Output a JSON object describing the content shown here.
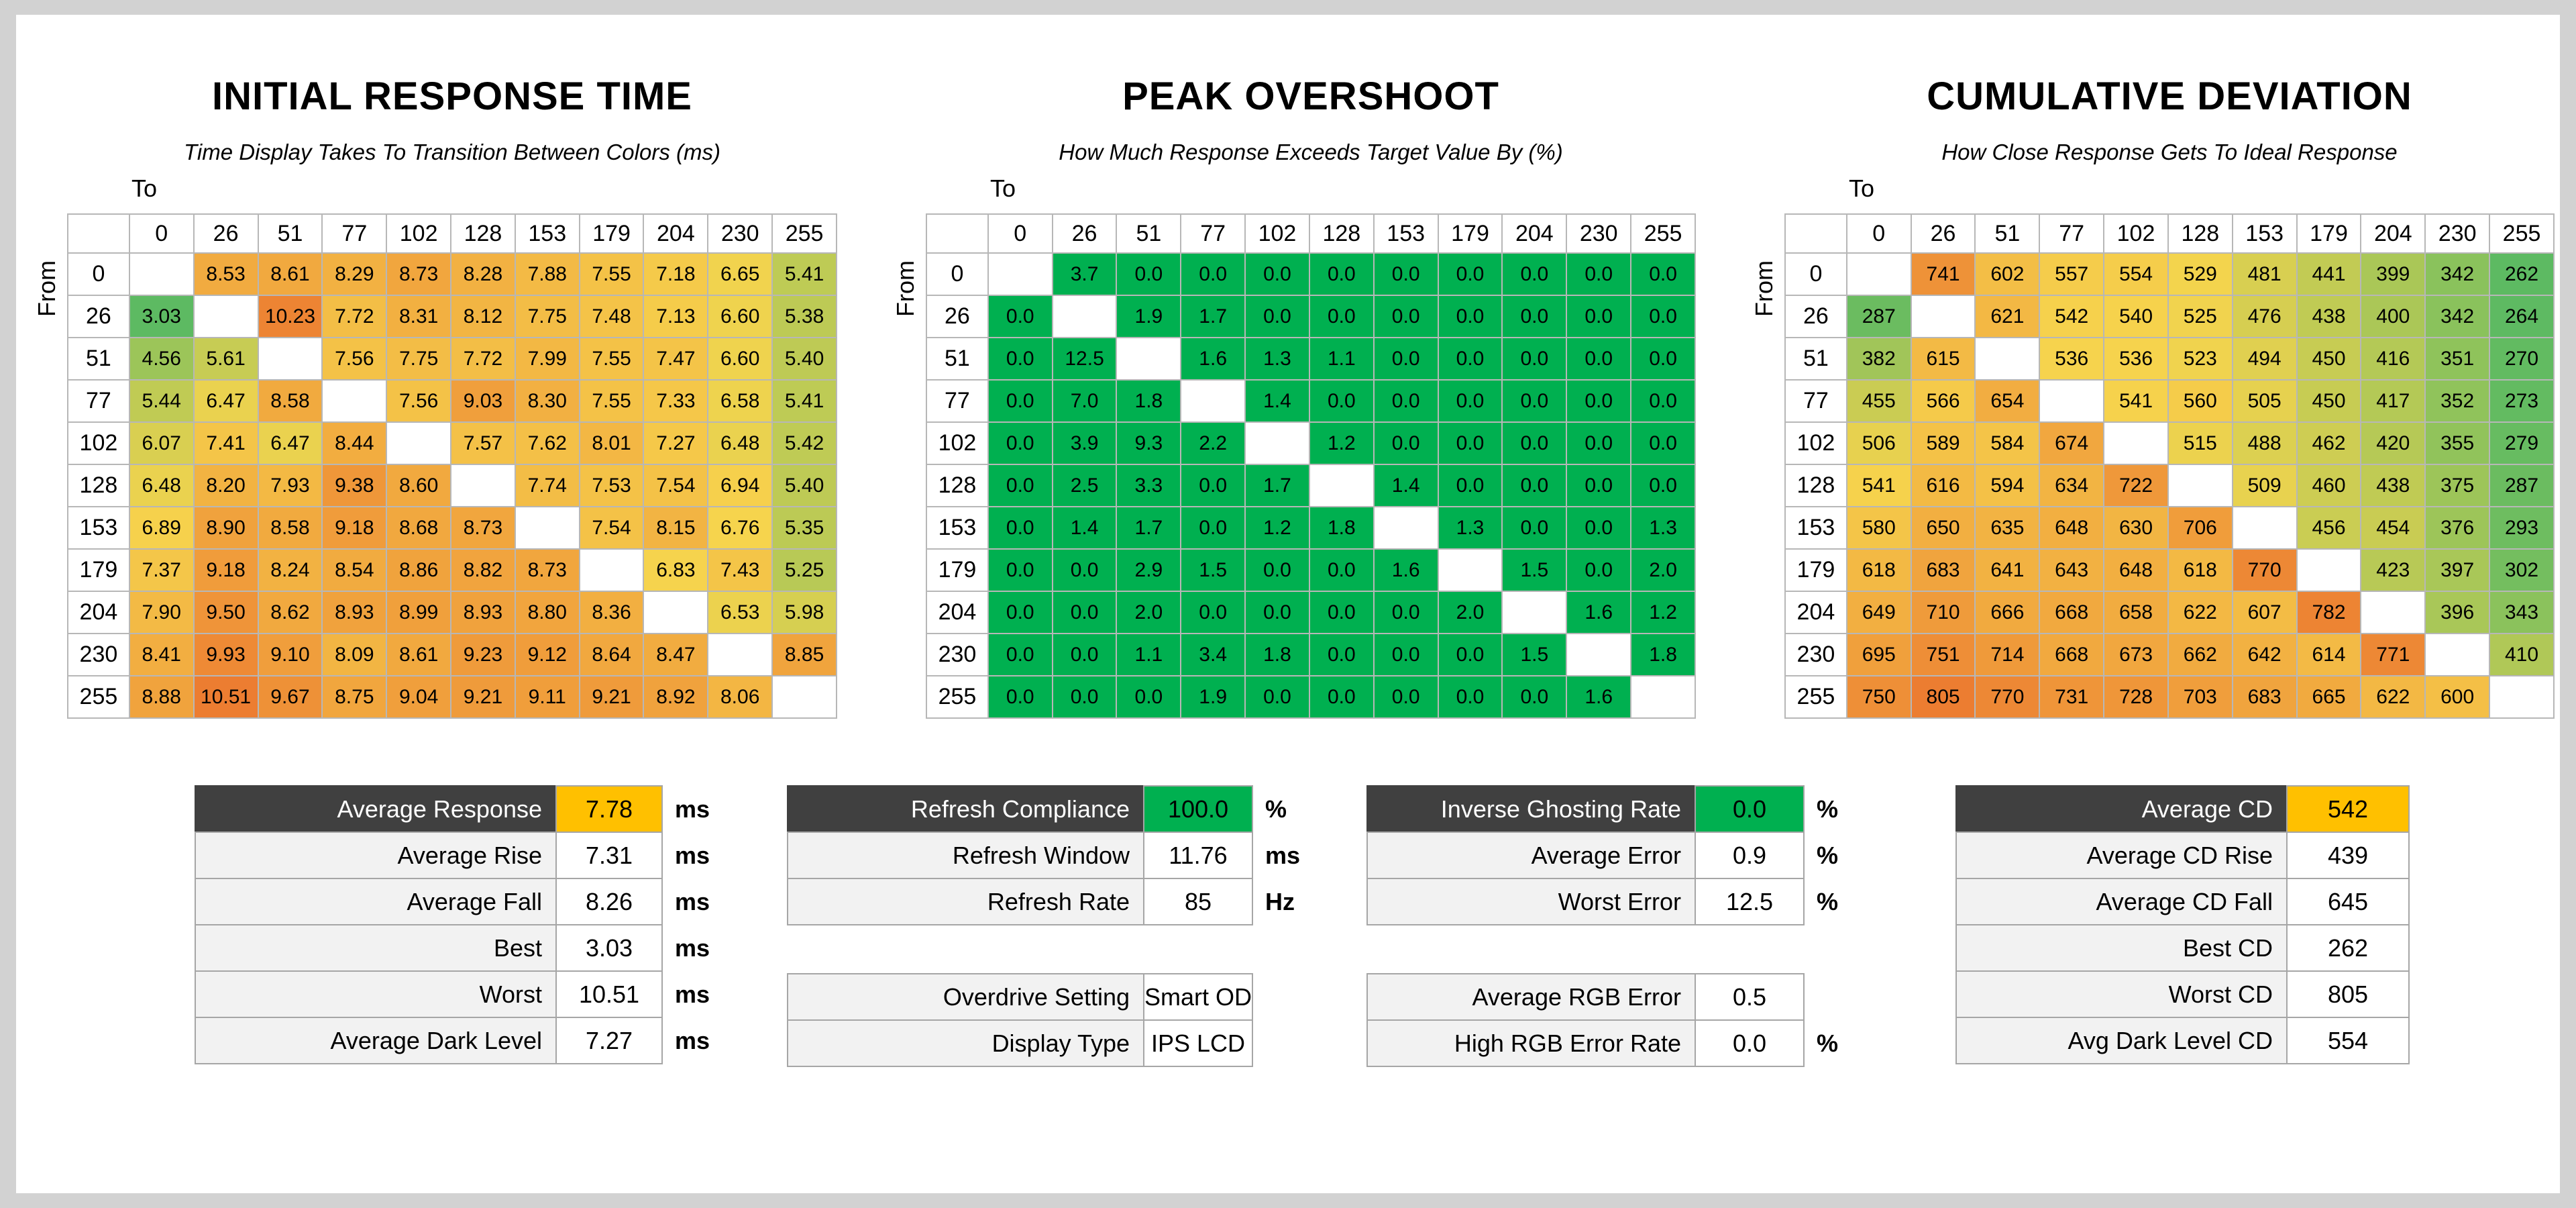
{
  "colors": {
    "page_background": "#d2d2d2",
    "card_background": "#ffffff",
    "matrix_grid_border": "#b7b7b7",
    "summary_border": "#a6a6a6",
    "summary_label_bg": "#f2f2f2",
    "summary_dark_header_bg": "#404040",
    "highlight_yellow": "#ffc000",
    "highlight_green": "#00b050"
  },
  "chart_data": [
    {
      "type": "heatmap",
      "name": "initial-response-time",
      "title": "INITIAL RESPONSE TIME",
      "subtitle": "Time Display Takes To Transition Between Colors (ms)",
      "x_axis_label": "To",
      "y_axis_label": "From",
      "unit": "ms",
      "decimals": 2,
      "categories": [
        0,
        26,
        51,
        77,
        102,
        128,
        153,
        179,
        204,
        230,
        255
      ],
      "scale": {
        "kind": "gradient",
        "min": 3.03,
        "max": 10.51,
        "stops": [
          "#5dba62",
          "#f6d44d",
          "#ec7d31"
        ]
      },
      "rows": [
        [
          null,
          8.53,
          8.61,
          8.29,
          8.73,
          8.28,
          7.88,
          7.55,
          7.18,
          6.65,
          5.41
        ],
        [
          3.03,
          null,
          10.23,
          7.72,
          8.31,
          8.12,
          7.75,
          7.48,
          7.13,
          6.6,
          5.38
        ],
        [
          4.56,
          5.61,
          null,
          7.56,
          7.75,
          7.72,
          7.99,
          7.55,
          7.47,
          6.6,
          5.4
        ],
        [
          5.44,
          6.47,
          8.58,
          null,
          7.56,
          9.03,
          8.3,
          7.55,
          7.33,
          6.58,
          5.41
        ],
        [
          6.07,
          7.41,
          6.47,
          8.44,
          null,
          7.57,
          7.62,
          8.01,
          7.27,
          6.48,
          5.42
        ],
        [
          6.48,
          8.2,
          7.93,
          9.38,
          8.6,
          null,
          7.74,
          7.53,
          7.54,
          6.94,
          5.4
        ],
        [
          6.89,
          8.9,
          8.58,
          9.18,
          8.68,
          8.73,
          null,
          7.54,
          8.15,
          6.76,
          5.35
        ],
        [
          7.37,
          9.18,
          8.24,
          8.54,
          8.86,
          8.82,
          8.73,
          null,
          6.83,
          7.43,
          5.25
        ],
        [
          7.9,
          9.5,
          8.62,
          8.93,
          8.99,
          8.93,
          8.8,
          8.36,
          null,
          6.53,
          5.98
        ],
        [
          8.41,
          9.93,
          9.1,
          8.09,
          8.61,
          9.23,
          9.12,
          8.64,
          8.47,
          null,
          8.85
        ],
        [
          8.88,
          10.51,
          9.67,
          8.75,
          9.04,
          9.21,
          9.11,
          9.21,
          8.92,
          8.06,
          null
        ]
      ]
    },
    {
      "type": "heatmap",
      "name": "peak-overshoot",
      "title": "PEAK OVERSHOOT",
      "subtitle": "How Much Response Exceeds Target Value By (%)",
      "x_axis_label": "To",
      "y_axis_label": "From",
      "unit": "%",
      "decimals": 1,
      "categories": [
        0,
        26,
        51,
        77,
        102,
        128,
        153,
        179,
        204,
        230,
        255
      ],
      "scale": {
        "kind": "flat",
        "color": "#00b050"
      },
      "rows": [
        [
          null,
          3.7,
          0.0,
          0.0,
          0.0,
          0.0,
          0.0,
          0.0,
          0.0,
          0.0,
          0.0
        ],
        [
          0.0,
          null,
          1.9,
          1.7,
          0.0,
          0.0,
          0.0,
          0.0,
          0.0,
          0.0,
          0.0
        ],
        [
          0.0,
          12.5,
          null,
          1.6,
          1.3,
          1.1,
          0.0,
          0.0,
          0.0,
          0.0,
          0.0
        ],
        [
          0.0,
          7.0,
          1.8,
          null,
          1.4,
          0.0,
          0.0,
          0.0,
          0.0,
          0.0,
          0.0
        ],
        [
          0.0,
          3.9,
          9.3,
          2.2,
          null,
          1.2,
          0.0,
          0.0,
          0.0,
          0.0,
          0.0
        ],
        [
          0.0,
          2.5,
          3.3,
          0.0,
          1.7,
          null,
          1.4,
          0.0,
          0.0,
          0.0,
          0.0
        ],
        [
          0.0,
          1.4,
          1.7,
          0.0,
          1.2,
          1.8,
          null,
          1.3,
          0.0,
          0.0,
          1.3
        ],
        [
          0.0,
          0.0,
          2.9,
          1.5,
          0.0,
          0.0,
          1.6,
          null,
          1.5,
          0.0,
          2.0
        ],
        [
          0.0,
          0.0,
          2.0,
          0.0,
          0.0,
          0.0,
          0.0,
          2.0,
          null,
          1.6,
          1.2
        ],
        [
          0.0,
          0.0,
          1.1,
          3.4,
          1.8,
          0.0,
          0.0,
          0.0,
          1.5,
          null,
          1.8
        ],
        [
          0.0,
          0.0,
          0.0,
          1.9,
          0.0,
          0.0,
          0.0,
          0.0,
          0.0,
          1.6,
          null
        ]
      ]
    },
    {
      "type": "heatmap",
      "name": "cumulative-deviation",
      "title": "CUMULATIVE DEVIATION",
      "subtitle": "How Close Response Gets To Ideal Response",
      "x_axis_label": "To",
      "y_axis_label": "From",
      "unit": "",
      "decimals": 0,
      "categories": [
        0,
        26,
        51,
        77,
        102,
        128,
        153,
        179,
        204,
        230,
        255
      ],
      "scale": {
        "kind": "gradient",
        "min": 262,
        "max": 805,
        "stops": [
          "#5dba62",
          "#f6d44d",
          "#ec7d31"
        ]
      },
      "rows": [
        [
          null,
          741,
          602,
          557,
          554,
          529,
          481,
          441,
          399,
          342,
          262
        ],
        [
          287,
          null,
          621,
          542,
          540,
          525,
          476,
          438,
          400,
          342,
          264
        ],
        [
          382,
          615,
          null,
          536,
          536,
          523,
          494,
          450,
          416,
          351,
          270
        ],
        [
          455,
          566,
          654,
          null,
          541,
          560,
          505,
          450,
          417,
          352,
          273
        ],
        [
          506,
          589,
          584,
          674,
          null,
          515,
          488,
          462,
          420,
          355,
          279
        ],
        [
          541,
          616,
          594,
          634,
          722,
          null,
          509,
          460,
          438,
          375,
          287
        ],
        [
          580,
          650,
          635,
          648,
          630,
          706,
          null,
          456,
          454,
          376,
          293
        ],
        [
          618,
          683,
          641,
          643,
          648,
          618,
          770,
          null,
          423,
          397,
          302
        ],
        [
          649,
          710,
          666,
          668,
          658,
          622,
          607,
          782,
          null,
          396,
          343
        ],
        [
          695,
          751,
          714,
          668,
          673,
          662,
          642,
          614,
          771,
          null,
          410
        ],
        [
          750,
          805,
          770,
          731,
          728,
          703,
          683,
          665,
          622,
          600,
          null
        ]
      ]
    },
    {
      "type": "table",
      "name": "response-time-summary",
      "groups": [
        [
          {
            "label": "Average Response",
            "value": "7.78",
            "unit": "ms",
            "dark": true,
            "value_color": "#ffc000"
          },
          {
            "label": "Average Rise",
            "value": "7.31",
            "unit": "ms"
          },
          {
            "label": "Average Fall",
            "value": "8.26",
            "unit": "ms"
          },
          {
            "label": "Best",
            "value": "3.03",
            "unit": "ms"
          },
          {
            "label": "Worst",
            "value": "10.51",
            "unit": "ms"
          },
          {
            "label": "Average Dark Level",
            "value": "7.27",
            "unit": "ms"
          }
        ]
      ]
    },
    {
      "type": "table",
      "name": "refresh-summary",
      "groups": [
        [
          {
            "label": "Refresh Compliance",
            "value": "100.0",
            "unit": "%",
            "dark": true,
            "value_color": "#00b050"
          },
          {
            "label": "Refresh Window",
            "value": "11.76",
            "unit": "ms"
          },
          {
            "label": "Refresh Rate",
            "value": "85",
            "unit": "Hz"
          }
        ],
        [
          {
            "label": "Overdrive Setting",
            "value": "Smart OD"
          },
          {
            "label": "Display Type",
            "value": "IPS LCD"
          }
        ]
      ]
    },
    {
      "type": "table",
      "name": "overshoot-error-summary",
      "groups": [
        [
          {
            "label": "Inverse Ghosting Rate",
            "value": "0.0",
            "unit": "%",
            "dark": true,
            "value_color": "#00b050"
          },
          {
            "label": "Average Error",
            "value": "0.9",
            "unit": "%"
          },
          {
            "label": "Worst Error",
            "value": "12.5",
            "unit": "%"
          }
        ],
        [
          {
            "label": "Average RGB Error",
            "value": "0.5"
          },
          {
            "label": "High RGB Error Rate",
            "value": "0.0",
            "unit": "%"
          }
        ]
      ]
    },
    {
      "type": "table",
      "name": "cumulative-deviation-summary",
      "groups": [
        [
          {
            "label": "Average CD",
            "value": "542",
            "dark": true,
            "value_color": "#ffc000"
          },
          {
            "label": "Average CD Rise",
            "value": "439"
          },
          {
            "label": "Average CD Fall",
            "value": "645"
          },
          {
            "label": "Best CD",
            "value": "262"
          },
          {
            "label": "Worst CD",
            "value": "805"
          },
          {
            "label": "Avg Dark Level CD",
            "value": "554"
          }
        ]
      ]
    }
  ]
}
